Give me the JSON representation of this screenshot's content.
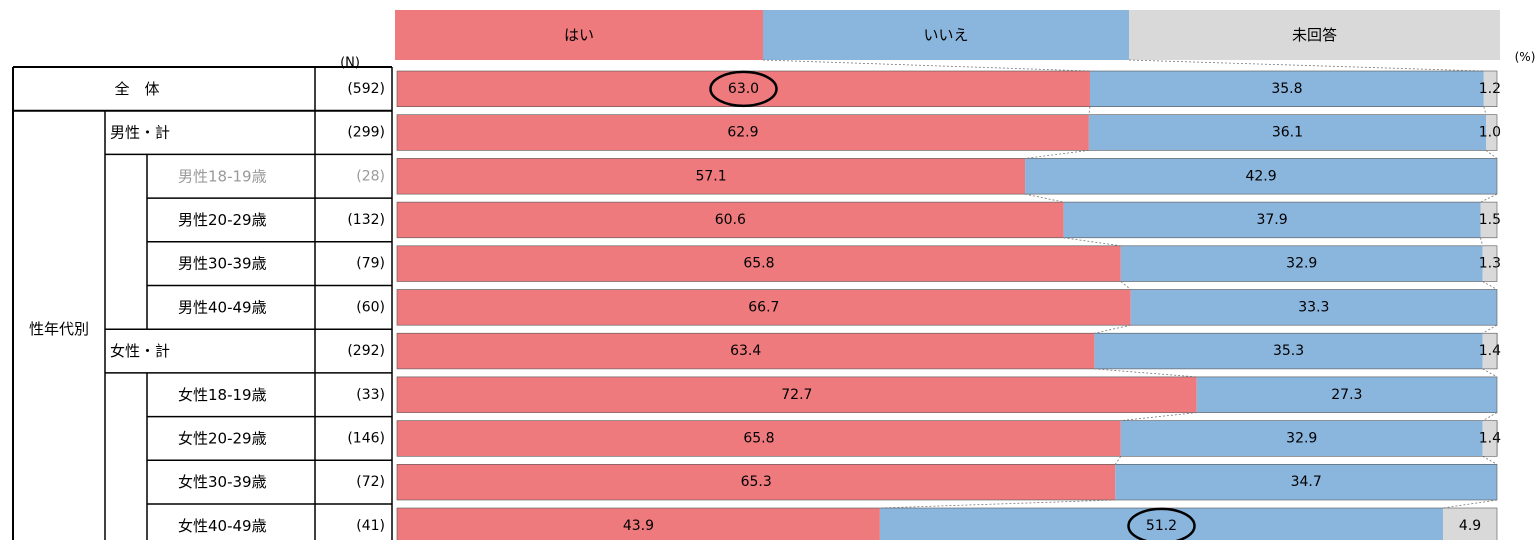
{
  "chart_data": {
    "type": "bar",
    "stacked": true,
    "orientation": "horizontal",
    "legend": [
      "はい",
      "いいえ",
      "未回答"
    ],
    "colors": {
      "はい": "#EE7A7D",
      "いいえ": "#8AB6DE",
      "未回答": "#D9D9D9"
    },
    "n_header": "(N)",
    "unit_label": "(%)",
    "group_label": "性年代別",
    "rows": [
      {
        "label": "全　体",
        "n": "(592)",
        "values": [
          63.0,
          35.8,
          1.2
        ],
        "labels": [
          "63.0",
          "35.8",
          "1.2"
        ],
        "level": 0,
        "muted": false,
        "circled": 0
      },
      {
        "label": "男性・計",
        "n": "(299)",
        "values": [
          62.9,
          36.1,
          1.0
        ],
        "labels": [
          "62.9",
          "36.1",
          "1.0"
        ],
        "level": 1,
        "muted": false,
        "circled": -1
      },
      {
        "label": "男性18-19歳",
        "n": "(28)",
        "values": [
          57.1,
          42.9,
          0
        ],
        "labels": [
          "57.1",
          "42.9",
          ""
        ],
        "level": 2,
        "muted": true,
        "circled": -1
      },
      {
        "label": "男性20-29歳",
        "n": "(132)",
        "values": [
          60.6,
          37.9,
          1.5
        ],
        "labels": [
          "60.6",
          "37.9",
          "1.5"
        ],
        "level": 2,
        "muted": false,
        "circled": -1
      },
      {
        "label": "男性30-39歳",
        "n": "(79)",
        "values": [
          65.8,
          32.9,
          1.3
        ],
        "labels": [
          "65.8",
          "32.9",
          "1.3"
        ],
        "level": 2,
        "muted": false,
        "circled": -1
      },
      {
        "label": "男性40-49歳",
        "n": "(60)",
        "values": [
          66.7,
          33.3,
          0
        ],
        "labels": [
          "66.7",
          "33.3",
          ""
        ],
        "level": 2,
        "muted": false,
        "circled": -1
      },
      {
        "label": "女性・計",
        "n": "(292)",
        "values": [
          63.4,
          35.3,
          1.4
        ],
        "labels": [
          "63.4",
          "35.3",
          "1.4"
        ],
        "level": 1,
        "muted": false,
        "circled": -1
      },
      {
        "label": "女性18-19歳",
        "n": "(33)",
        "values": [
          72.7,
          27.3,
          0
        ],
        "labels": [
          "72.7",
          "27.3",
          ""
        ],
        "level": 2,
        "muted": false,
        "circled": -1
      },
      {
        "label": "女性20-29歳",
        "n": "(146)",
        "values": [
          65.8,
          32.9,
          1.4
        ],
        "labels": [
          "65.8",
          "32.9",
          "1.4"
        ],
        "level": 2,
        "muted": false,
        "circled": -1
      },
      {
        "label": "女性30-39歳",
        "n": "(72)",
        "values": [
          65.3,
          34.7,
          0
        ],
        "labels": [
          "65.3",
          "34.7",
          ""
        ],
        "level": 2,
        "muted": false,
        "circled": -1
      },
      {
        "label": "女性40-49歳",
        "n": "(41)",
        "values": [
          43.9,
          51.2,
          4.9
        ],
        "labels": [
          "43.9",
          "51.2",
          "4.9"
        ],
        "level": 2,
        "muted": false,
        "circled": 1
      }
    ]
  }
}
